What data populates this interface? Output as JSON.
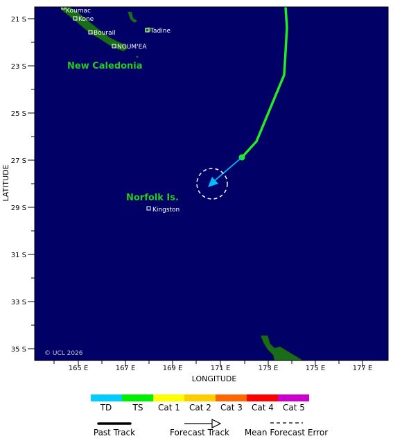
{
  "map": {
    "x_axis_title": "LONGITUDE",
    "y_axis_title": "LATITUDE",
    "lon_ticks": [
      "165 E",
      "167 E",
      "169 E",
      "171 E",
      "173 E",
      "175 E",
      "177 E"
    ],
    "lat_ticks": [
      "21 S",
      "23 S",
      "25 S",
      "27 S",
      "29 S",
      "31 S",
      "33 S",
      "35 S"
    ],
    "regions": {
      "new_caledonia": "New Caledonia",
      "norfolk": "Norfolk Is."
    },
    "places": {
      "koumac": "Koumac",
      "kone": "Kone",
      "bourail": "Bourail",
      "tadine": "Tadine",
      "noumea": "NOUM'EA",
      "kingston": "Kingston"
    },
    "copyright": "© UCL 2026",
    "colors": {
      "ocean": "#000066",
      "land": "#1a6b1a",
      "past_track": "#22ee22",
      "forecast": "#00bbff"
    }
  },
  "legend": {
    "categories": [
      {
        "label": "TD",
        "color": "#00ccff"
      },
      {
        "label": "TS",
        "color": "#00ee00"
      },
      {
        "label": "Cat 1",
        "color": "#ffff00"
      },
      {
        "label": "Cat 2",
        "color": "#ffcc00"
      },
      {
        "label": "Cat 3",
        "color": "#ff6600"
      },
      {
        "label": "Cat 4",
        "color": "#ff0000"
      },
      {
        "label": "Cat 5",
        "color": "#cc00cc"
      }
    ],
    "past_track": "Past Track",
    "forecast_track": "Forecast Track",
    "mean_error": "Mean Forecast Error"
  }
}
